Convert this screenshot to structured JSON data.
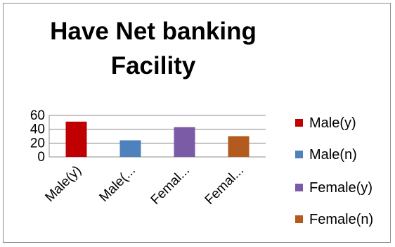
{
  "chart_data": {
    "type": "bar",
    "title": "Have Net banking Facility",
    "title_lines": [
      "Have Net banking",
      "Facility"
    ],
    "categories": [
      "Male(y)",
      "Male(n)",
      "Female(y)",
      "Female(n)"
    ],
    "category_tick_labels": [
      "Male(y)",
      "Male(...",
      "Femal...",
      "Femal..."
    ],
    "values": [
      51,
      24,
      43,
      30
    ],
    "colors": [
      "#c00000",
      "#4f81bd",
      "#7b5aa6",
      "#b35a1f"
    ],
    "ylim": [
      0,
      60
    ],
    "yticks": [
      "60",
      "40",
      "20",
      "0"
    ],
    "grid": true,
    "legend_position": "right",
    "legend": [
      "Male(y)",
      "Male(n)",
      "Female(y)",
      "Female(n)"
    ],
    "xlabel": "",
    "ylabel": ""
  }
}
